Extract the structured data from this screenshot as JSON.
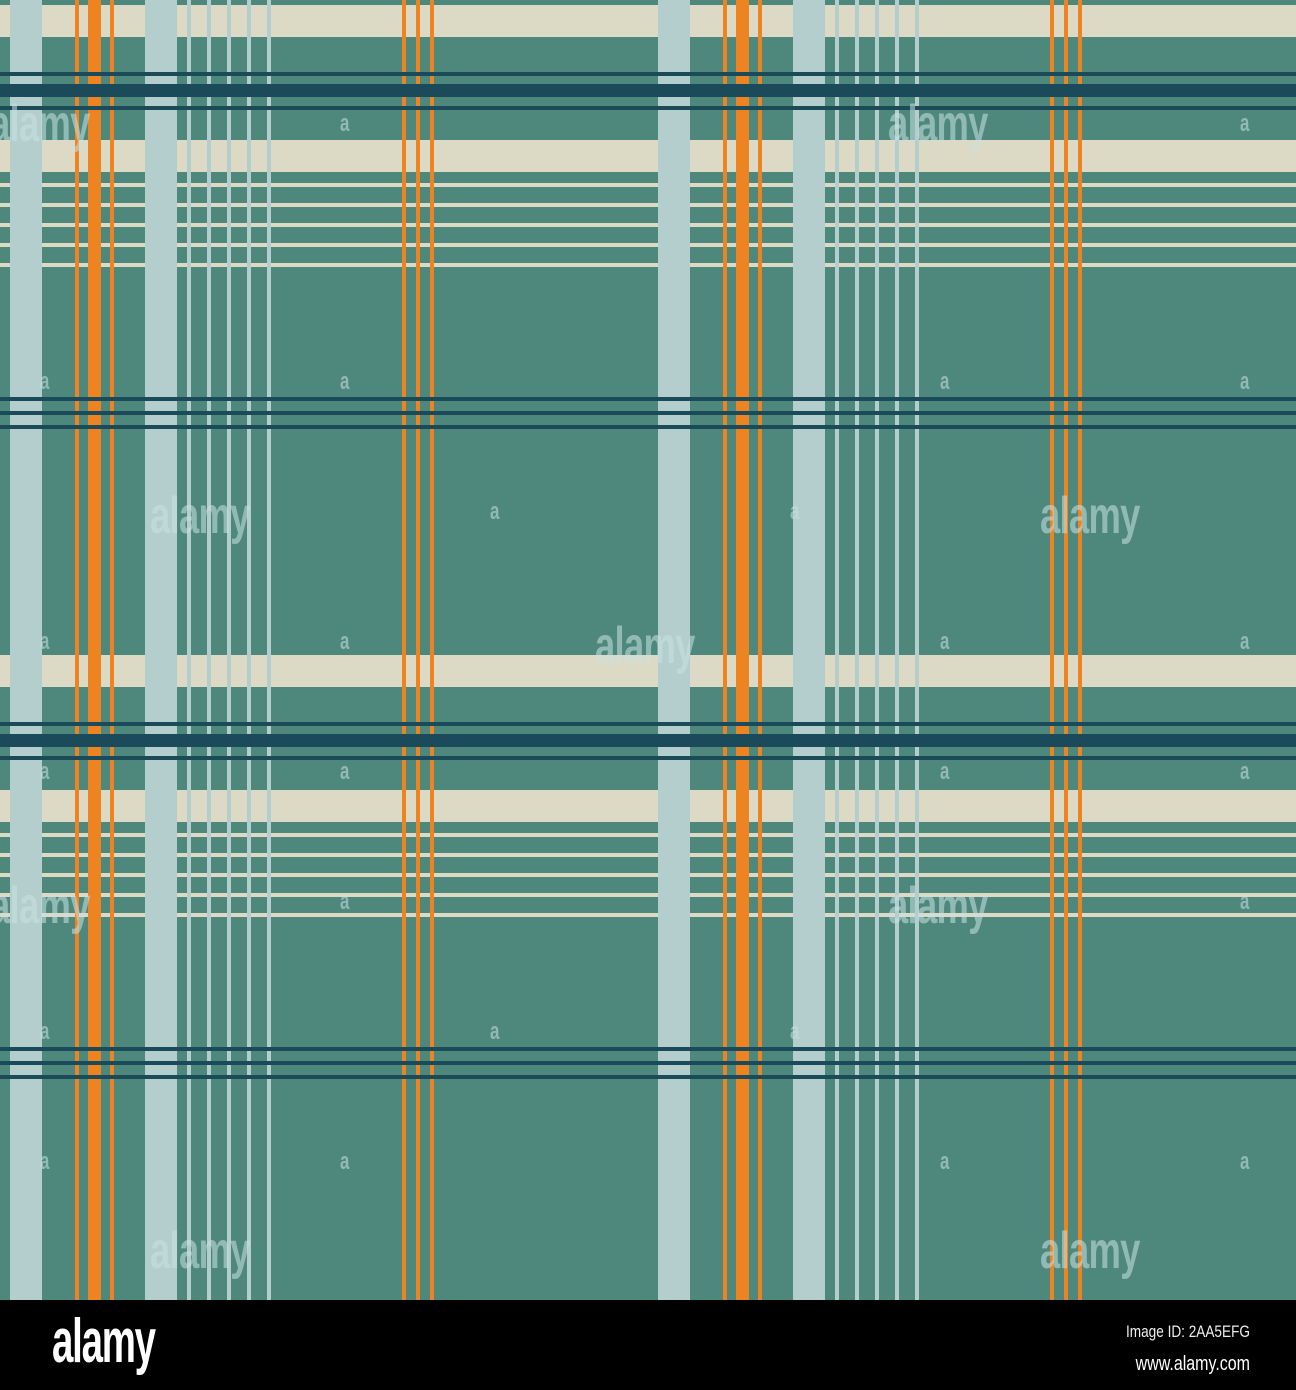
{
  "pattern": {
    "style": "tartan plaid",
    "colors": {
      "ground": "#4E877C",
      "cream": "#DCD9C4",
      "light_blue": "#B4CECD",
      "orange": "#EE8421",
      "navy": "#1B4A5A"
    }
  },
  "watermark": {
    "text": "alamy",
    "letter": "a"
  },
  "footer": {
    "logo": "alamy",
    "image_id": "Image ID: 2AA5EFG",
    "url": "www.alamy.com"
  }
}
